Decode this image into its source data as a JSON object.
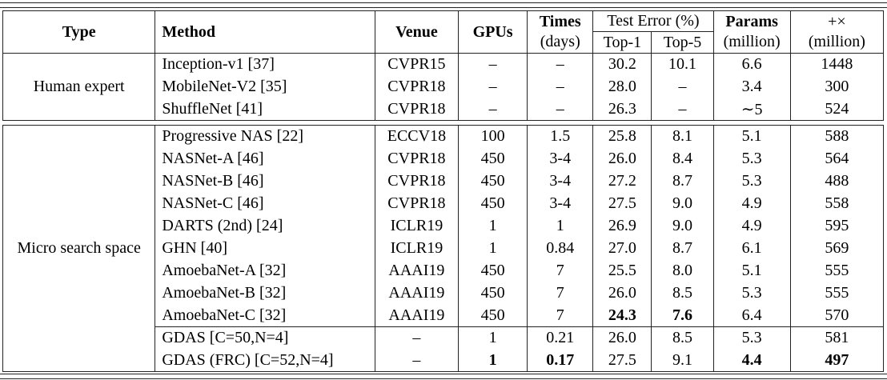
{
  "header": {
    "type": "Type",
    "method": "Method",
    "venue": "Venue",
    "gpus": "GPUs",
    "times_line1": "Times",
    "times_line2": "(days)",
    "test_error": "Test Error (%)",
    "top1": "Top-1",
    "top5": "Top-5",
    "params_line1": "Params",
    "params_line2": "(million)",
    "ops_line1": "+×",
    "ops_line2": "(million)"
  },
  "sections": [
    {
      "label": "Human expert",
      "rows": [
        {
          "method": "Inception-v1 [37]",
          "venue": "CVPR15",
          "gpus": "–",
          "days": "–",
          "top1": "30.2",
          "top5": "10.1",
          "params": "6.6",
          "ops": "1448"
        },
        {
          "method": "MobileNet-V2 [35]",
          "venue": "CVPR18",
          "gpus": "–",
          "days": "–",
          "top1": "28.0",
          "top5": "–",
          "params": "3.4",
          "ops": "300"
        },
        {
          "method": "ShuffleNet [41]",
          "venue": "CVPR18",
          "gpus": "–",
          "days": "–",
          "top1": "26.3",
          "top5": "–",
          "params": "∼5",
          "ops": "524"
        }
      ]
    },
    {
      "label": "Micro search space",
      "rows": [
        {
          "method": "Progressive NAS [22]",
          "venue": "ECCV18",
          "gpus": "100",
          "days": "1.5",
          "top1": "25.8",
          "top5": "8.1",
          "params": "5.1",
          "ops": "588"
        },
        {
          "method": "NASNet-A [46]",
          "venue": "CVPR18",
          "gpus": "450",
          "days": "3-4",
          "top1": "26.0",
          "top5": "8.4",
          "params": "5.3",
          "ops": "564"
        },
        {
          "method": "NASNet-B [46]",
          "venue": "CVPR18",
          "gpus": "450",
          "days": "3-4",
          "top1": "27.2",
          "top5": "8.7",
          "params": "5.3",
          "ops": "488"
        },
        {
          "method": "NASNet-C [46]",
          "venue": "CVPR18",
          "gpus": "450",
          "days": "3-4",
          "top1": "27.5",
          "top5": "9.0",
          "params": "4.9",
          "ops": "558"
        },
        {
          "method": "DARTS (2nd) [24]",
          "venue": "ICLR19",
          "gpus": "1",
          "days": "1",
          "top1": "26.9",
          "top5": "9.0",
          "params": "4.9",
          "ops": "595"
        },
        {
          "method": "GHN [40]",
          "venue": "ICLR19",
          "gpus": "1",
          "days": "0.84",
          "top1": "27.0",
          "top5": "8.7",
          "params": "6.1",
          "ops": "569"
        },
        {
          "method": "AmoebaNet-A [32]",
          "venue": "AAAI19",
          "gpus": "450",
          "days": "7",
          "top1": "25.5",
          "top5": "8.0",
          "params": "5.1",
          "ops": "555"
        },
        {
          "method": "AmoebaNet-B [32]",
          "venue": "AAAI19",
          "gpus": "450",
          "days": "7",
          "top1": "26.0",
          "top5": "8.5",
          "params": "5.3",
          "ops": "555"
        },
        {
          "method": "AmoebaNet-C [32]",
          "venue": "AAAI19",
          "gpus": "450",
          "days": "7",
          "top1": "24.3",
          "top5": "7.6",
          "params": "6.4",
          "ops": "570",
          "bold": [
            "top1",
            "top5"
          ]
        },
        {
          "method": "GDAS [C=50,N=4]",
          "venue": "–",
          "gpus": "1",
          "days": "0.21",
          "top1": "26.0",
          "top5": "8.5",
          "params": "5.3",
          "ops": "581",
          "rule_above": true
        },
        {
          "method": "GDAS (FRC) [C=52,N=4]",
          "venue": "–",
          "gpus": "1",
          "days": "0.17",
          "top1": "27.5",
          "top5": "9.1",
          "params": "4.4",
          "ops": "497",
          "bold": [
            "gpus",
            "days",
            "params",
            "ops"
          ]
        }
      ]
    }
  ]
}
